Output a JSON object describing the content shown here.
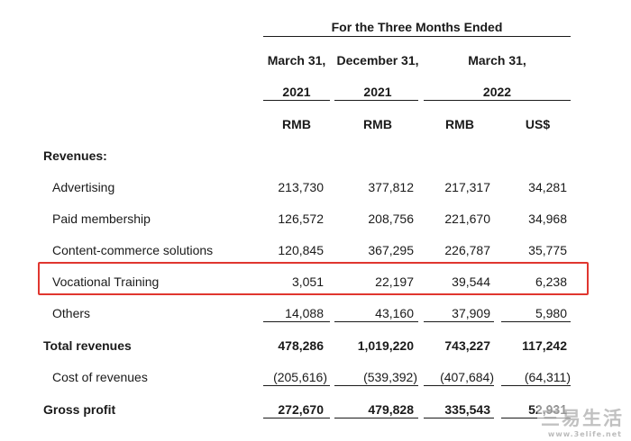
{
  "header": {
    "period_title": "For the Three Months Ended",
    "columns": [
      {
        "date_line1": "March 31,",
        "date_line2": "2021",
        "currency": "RMB"
      },
      {
        "date_line1": "December 31,",
        "date_line2": "2021",
        "currency": "RMB"
      },
      {
        "date_line1": "March 31,",
        "date_line2": "2022",
        "currency": "RMB"
      },
      {
        "currency": "US$"
      }
    ]
  },
  "section_label": "Revenues:",
  "rows": [
    {
      "label": "Advertising",
      "values": [
        "213,730",
        "377,812",
        "217,317",
        "34,281"
      ]
    },
    {
      "label": "Paid membership",
      "values": [
        "126,572",
        "208,756",
        "221,670",
        "34,968"
      ]
    },
    {
      "label": "Content-commerce solutions",
      "values": [
        "120,845",
        "367,295",
        "226,787",
        "35,775"
      ]
    },
    {
      "label": "Vocational Training",
      "values": [
        "3,051",
        "22,197",
        "39,544",
        "6,238"
      ],
      "highlighted": true
    },
    {
      "label": "Others",
      "values": [
        "14,088",
        "43,160",
        "37,909",
        "5,980"
      ]
    },
    {
      "label": "Total revenues",
      "values": [
        "478,286",
        "1,019,220",
        "743,227",
        "117,242"
      ]
    },
    {
      "label": "Cost of revenues",
      "values": [
        "(205,616)",
        "(539,392)",
        "(407,684)",
        "(64,311)"
      ]
    },
    {
      "label": "Gross profit",
      "values": [
        "272,670",
        "479,828",
        "335,543",
        "52,931"
      ]
    }
  ],
  "highlight_color": "#e0362f",
  "watermark": {
    "text": "三易生活",
    "url": "www.3elife.net"
  }
}
